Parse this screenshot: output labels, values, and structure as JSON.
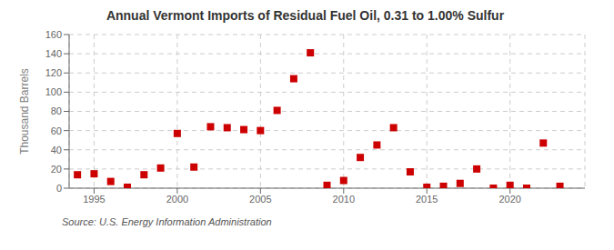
{
  "chart_data": {
    "type": "scatter",
    "title": "Annual Vermont Imports of Residual Fuel Oil, 0.31 to 1.00% Sulfur",
    "ylabel": "Thousand Barrels",
    "annotations": [
      "Source: U.S. Energy Information Administration"
    ],
    "x": [
      1994,
      1995,
      1996,
      1997,
      1998,
      1999,
      2000,
      2001,
      2002,
      2003,
      2004,
      2005,
      2006,
      2007,
      2008,
      2009,
      2010,
      2011,
      2012,
      2013,
      2014,
      2015,
      2016,
      2017,
      2018,
      2019,
      2020,
      2021,
      2022,
      2023
    ],
    "values": [
      14,
      15,
      7,
      1,
      14,
      21,
      57,
      22,
      64,
      63,
      61,
      60,
      81,
      114,
      141,
      3,
      8,
      32,
      45,
      63,
      17,
      1,
      2,
      5,
      20,
      0,
      3,
      0,
      47,
      2
    ],
    "color": "#cc0000",
    "marker": "square",
    "xlim": [
      1993.5,
      2024.5
    ],
    "ylim": [
      0,
      160
    ],
    "xticks": [
      1995,
      2000,
      2005,
      2010,
      2015,
      2020
    ],
    "yticks": [
      0,
      20,
      40,
      60,
      80,
      100,
      120,
      140,
      160
    ],
    "grid": true
  }
}
